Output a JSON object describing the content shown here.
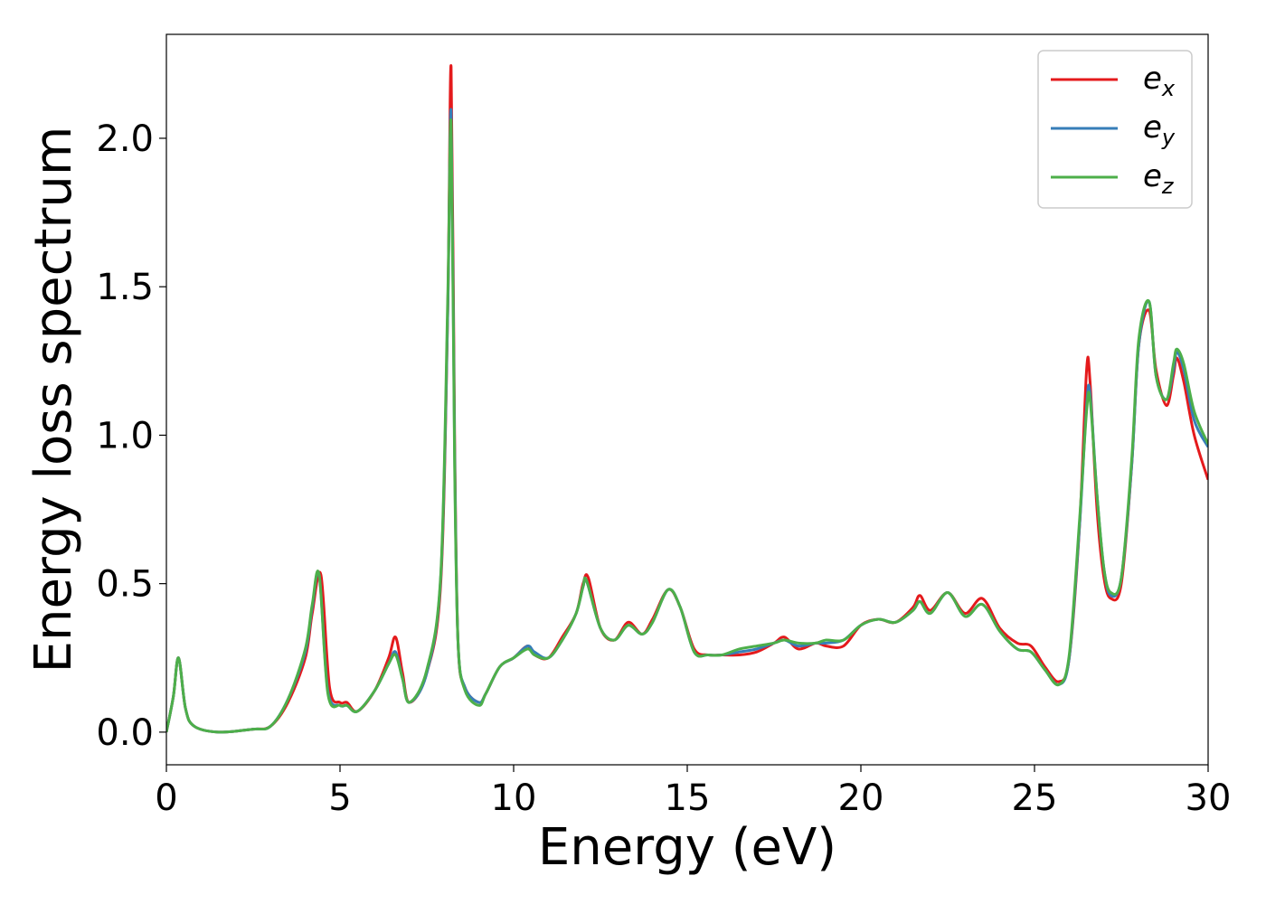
{
  "chart_data": {
    "type": "line",
    "xlabel": "Energy (eV)",
    "ylabel": "Energy loss spectrum",
    "xlim": [
      0,
      30
    ],
    "ylim": [
      -0.11,
      2.35
    ],
    "xticks": [
      0,
      5,
      10,
      15,
      20,
      25,
      30
    ],
    "xtick_labels": [
      "0",
      "5",
      "10",
      "15",
      "20",
      "25",
      "30"
    ],
    "yticks": [
      0.0,
      0.5,
      1.0,
      1.5,
      2.0
    ],
    "ytick_labels": [
      "0.0",
      "0.5",
      "1.0",
      "1.5",
      "2.0"
    ],
    "grid": false,
    "legend": {
      "placement": "top-right",
      "entries": [
        {
          "base": "e",
          "sub": "x"
        },
        {
          "base": "e",
          "sub": "y"
        },
        {
          "base": "e",
          "sub": "z"
        }
      ]
    },
    "series": [
      {
        "name": "e_x",
        "color": "#e41a1c",
        "x": [
          0,
          0.2,
          0.35,
          0.55,
          0.8,
          1.5,
          2.5,
          3.0,
          3.5,
          4.0,
          4.2,
          4.45,
          4.7,
          5.0,
          5.2,
          5.5,
          6.0,
          6.4,
          6.6,
          6.8,
          7.0,
          7.5,
          7.9,
          8.1,
          8.2,
          8.3,
          8.4,
          8.6,
          9.0,
          9.2,
          9.6,
          10.0,
          10.4,
          10.6,
          11.0,
          11.4,
          11.8,
          12.0,
          12.15,
          12.5,
          12.9,
          13.3,
          13.7,
          14.0,
          14.45,
          14.8,
          15.2,
          15.6,
          16.0,
          16.5,
          17.0,
          17.5,
          17.8,
          18.2,
          18.7,
          19.0,
          19.5,
          20.0,
          20.5,
          21.0,
          21.5,
          21.7,
          22.0,
          22.5,
          23.0,
          23.5,
          24.0,
          24.5,
          24.9,
          25.3,
          25.7,
          26.0,
          26.3,
          26.5,
          26.6,
          26.8,
          27.0,
          27.2,
          27.5,
          27.8,
          28.0,
          28.3,
          28.5,
          28.8,
          29.0,
          29.1,
          29.3,
          29.6,
          30.0
        ],
        "y": [
          0.0,
          0.12,
          0.25,
          0.08,
          0.02,
          0.0,
          0.01,
          0.02,
          0.1,
          0.25,
          0.4,
          0.53,
          0.15,
          0.1,
          0.1,
          0.07,
          0.14,
          0.25,
          0.32,
          0.2,
          0.1,
          0.2,
          0.5,
          1.4,
          2.24,
          1.0,
          0.3,
          0.15,
          0.1,
          0.13,
          0.22,
          0.25,
          0.29,
          0.26,
          0.25,
          0.32,
          0.4,
          0.5,
          0.52,
          0.35,
          0.31,
          0.37,
          0.33,
          0.38,
          0.48,
          0.42,
          0.28,
          0.26,
          0.26,
          0.26,
          0.27,
          0.3,
          0.32,
          0.28,
          0.3,
          0.29,
          0.29,
          0.36,
          0.38,
          0.37,
          0.42,
          0.46,
          0.41,
          0.47,
          0.4,
          0.45,
          0.35,
          0.3,
          0.29,
          0.22,
          0.17,
          0.25,
          0.7,
          1.22,
          1.18,
          0.75,
          0.52,
          0.45,
          0.5,
          0.9,
          1.3,
          1.42,
          1.22,
          1.1,
          1.2,
          1.26,
          1.18,
          1.0,
          0.85
        ]
      },
      {
        "name": "e_y",
        "color": "#377eb8",
        "x": [
          0,
          0.2,
          0.35,
          0.55,
          0.8,
          1.5,
          2.5,
          3.0,
          3.5,
          4.0,
          4.2,
          4.4,
          4.65,
          5.0,
          5.2,
          5.5,
          6.0,
          6.4,
          6.6,
          6.8,
          7.0,
          7.5,
          7.9,
          8.1,
          8.2,
          8.3,
          8.4,
          8.6,
          9.0,
          9.2,
          9.6,
          10.0,
          10.4,
          10.6,
          11.0,
          11.4,
          11.8,
          12.0,
          12.1,
          12.5,
          12.9,
          13.3,
          13.7,
          14.0,
          14.45,
          14.8,
          15.2,
          15.6,
          16.0,
          16.5,
          17.0,
          17.5,
          17.8,
          18.2,
          18.7,
          19.0,
          19.5,
          20.0,
          20.5,
          21.0,
          21.5,
          21.7,
          22.0,
          22.5,
          23.0,
          23.5,
          24.0,
          24.5,
          24.9,
          25.3,
          25.7,
          26.0,
          26.3,
          26.5,
          26.6,
          26.8,
          27.0,
          27.2,
          27.5,
          27.8,
          28.0,
          28.3,
          28.5,
          28.8,
          29.0,
          29.1,
          29.3,
          29.6,
          30.0
        ],
        "y": [
          0.0,
          0.12,
          0.25,
          0.08,
          0.02,
          0.0,
          0.01,
          0.02,
          0.11,
          0.27,
          0.42,
          0.53,
          0.14,
          0.09,
          0.09,
          0.07,
          0.14,
          0.23,
          0.27,
          0.18,
          0.1,
          0.2,
          0.52,
          1.4,
          2.09,
          0.95,
          0.3,
          0.15,
          0.1,
          0.13,
          0.22,
          0.25,
          0.29,
          0.27,
          0.25,
          0.31,
          0.4,
          0.49,
          0.51,
          0.35,
          0.31,
          0.36,
          0.33,
          0.37,
          0.48,
          0.42,
          0.27,
          0.26,
          0.26,
          0.27,
          0.28,
          0.3,
          0.31,
          0.29,
          0.3,
          0.3,
          0.31,
          0.36,
          0.38,
          0.37,
          0.41,
          0.44,
          0.4,
          0.47,
          0.39,
          0.43,
          0.34,
          0.28,
          0.27,
          0.21,
          0.16,
          0.25,
          0.7,
          1.1,
          1.14,
          0.8,
          0.55,
          0.46,
          0.52,
          0.9,
          1.3,
          1.45,
          1.2,
          1.12,
          1.22,
          1.28,
          1.22,
          1.05,
          0.96
        ]
      },
      {
        "name": "e_z",
        "color": "#4daf4a",
        "x": [
          0,
          0.2,
          0.35,
          0.55,
          0.8,
          1.5,
          2.5,
          3.0,
          3.5,
          4.0,
          4.2,
          4.4,
          4.65,
          5.0,
          5.2,
          5.5,
          6.0,
          6.4,
          6.6,
          6.8,
          7.0,
          7.5,
          7.9,
          8.1,
          8.2,
          8.3,
          8.4,
          8.6,
          9.0,
          9.2,
          9.6,
          10.0,
          10.4,
          10.6,
          11.0,
          11.4,
          11.8,
          12.0,
          12.1,
          12.5,
          12.9,
          13.3,
          13.7,
          14.0,
          14.45,
          14.8,
          15.2,
          15.6,
          16.0,
          16.5,
          17.0,
          17.5,
          17.8,
          18.2,
          18.7,
          19.0,
          19.5,
          20.0,
          20.5,
          21.0,
          21.5,
          21.7,
          22.0,
          22.5,
          23.0,
          23.5,
          24.0,
          24.5,
          24.9,
          25.3,
          25.7,
          26.0,
          26.3,
          26.5,
          26.6,
          26.8,
          27.0,
          27.2,
          27.5,
          27.8,
          28.0,
          28.3,
          28.5,
          28.8,
          29.0,
          29.1,
          29.3,
          29.6,
          30.0
        ],
        "y": [
          0.0,
          0.12,
          0.25,
          0.08,
          0.02,
          0.0,
          0.01,
          0.02,
          0.11,
          0.28,
          0.43,
          0.53,
          0.13,
          0.09,
          0.09,
          0.07,
          0.14,
          0.23,
          0.26,
          0.18,
          0.1,
          0.21,
          0.53,
          1.45,
          2.05,
          0.9,
          0.3,
          0.14,
          0.09,
          0.13,
          0.22,
          0.25,
          0.28,
          0.26,
          0.25,
          0.31,
          0.4,
          0.49,
          0.51,
          0.35,
          0.31,
          0.36,
          0.33,
          0.37,
          0.48,
          0.42,
          0.27,
          0.26,
          0.26,
          0.28,
          0.29,
          0.3,
          0.31,
          0.3,
          0.3,
          0.31,
          0.31,
          0.36,
          0.38,
          0.37,
          0.41,
          0.44,
          0.4,
          0.47,
          0.39,
          0.43,
          0.34,
          0.28,
          0.27,
          0.21,
          0.16,
          0.26,
          0.72,
          1.08,
          1.12,
          0.8,
          0.55,
          0.47,
          0.52,
          0.92,
          1.32,
          1.45,
          1.2,
          1.12,
          1.24,
          1.29,
          1.24,
          1.08,
          0.97
        ]
      }
    ]
  }
}
